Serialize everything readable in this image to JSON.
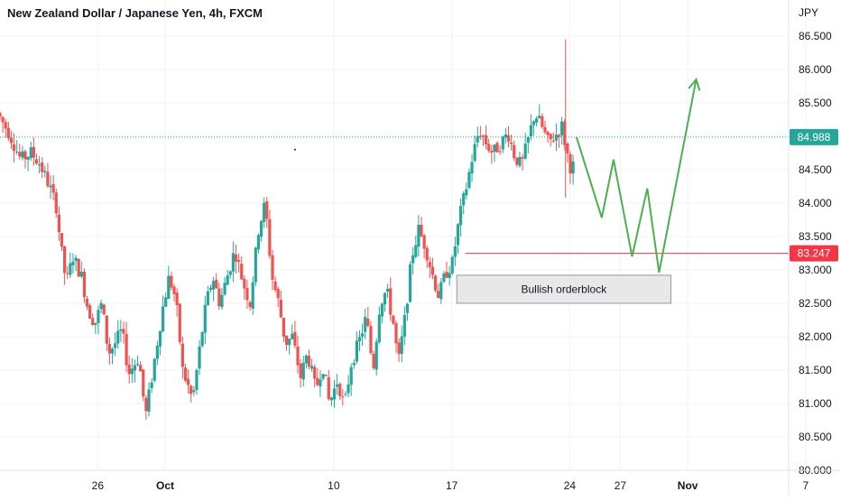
{
  "chart_data": {
    "type": "candlestick",
    "title": "New Zealand Dollar / Japanese Yen, 4h, FXCM",
    "currency": "JPY",
    "ylim": [
      80.0,
      86.85
    ],
    "y_ticks": [
      "86.500",
      "86.000",
      "85.500",
      "85.000",
      "84.500",
      "84.000",
      "83.500",
      "83.000",
      "82.500",
      "82.000",
      "81.500",
      "81.000",
      "80.500",
      "80.000"
    ],
    "x_ticks": [
      {
        "label": "26",
        "day": 26
      },
      {
        "label": "Oct",
        "day": 30
      },
      {
        "label": "10",
        "day": 40
      },
      {
        "label": "17",
        "day": 47
      },
      {
        "label": "24",
        "day": 54
      },
      {
        "label": "27",
        "day": 57
      },
      {
        "label": "Nov",
        "day": 61
      },
      {
        "label": "7",
        "day": 68
      }
    ],
    "x_range_days": [
      20.2,
      70.2
    ],
    "grid": true,
    "up_color": "#26a69a",
    "down_color": "#ef5350",
    "anchors": [
      [
        20.2,
        85.35
      ],
      [
        20.9,
        85.05
      ],
      [
        21.6,
        84.65
      ],
      [
        22.2,
        84.75
      ],
      [
        22.7,
        84.6
      ],
      [
        23.3,
        84.25
      ],
      [
        23.7,
        83.95
      ],
      [
        24.0,
        83.3
      ],
      [
        24.3,
        82.8
      ],
      [
        24.7,
        83.2
      ],
      [
        25.2,
        82.9
      ],
      [
        25.6,
        82.4
      ],
      [
        26.0,
        82.2
      ],
      [
        26.4,
        82.5
      ],
      [
        26.8,
        81.75
      ],
      [
        27.2,
        81.9
      ],
      [
        27.6,
        82.1
      ],
      [
        28.0,
        81.45
      ],
      [
        28.6,
        81.7
      ],
      [
        29.0,
        80.8
      ],
      [
        29.5,
        81.6
      ],
      [
        30.0,
        82.4
      ],
      [
        30.4,
        82.9
      ],
      [
        30.8,
        82.55
      ],
      [
        31.2,
        81.5
      ],
      [
        31.8,
        81.05
      ],
      [
        32.2,
        81.8
      ],
      [
        32.6,
        82.5
      ],
      [
        33.0,
        82.9
      ],
      [
        33.4,
        82.5
      ],
      [
        33.9,
        82.95
      ],
      [
        34.3,
        83.3
      ],
      [
        34.8,
        82.8
      ],
      [
        35.2,
        82.5
      ],
      [
        35.7,
        83.6
      ],
      [
        36.1,
        84.0
      ],
      [
        36.5,
        82.9
      ],
      [
        36.9,
        82.5
      ],
      [
        37.3,
        81.9
      ],
      [
        37.7,
        82.0
      ],
      [
        38.2,
        81.4
      ],
      [
        38.6,
        81.75
      ],
      [
        39.1,
        81.2
      ],
      [
        39.5,
        81.6
      ],
      [
        39.9,
        81.0
      ],
      [
        40.4,
        81.35
      ],
      [
        40.8,
        80.95
      ],
      [
        41.2,
        81.6
      ],
      [
        41.7,
        81.95
      ],
      [
        42.1,
        82.3
      ],
      [
        42.5,
        81.5
      ],
      [
        42.9,
        82.5
      ],
      [
        43.3,
        82.7
      ],
      [
        43.7,
        82.2
      ],
      [
        44.0,
        81.6
      ],
      [
        44.4,
        82.3
      ],
      [
        44.8,
        83.2
      ],
      [
        45.2,
        83.6
      ],
      [
        45.6,
        83.35
      ],
      [
        46.0,
        82.95
      ],
      [
        46.4,
        82.6
      ],
      [
        46.8,
        82.95
      ],
      [
        47.2,
        83.1
      ],
      [
        47.6,
        83.75
      ],
      [
        48.0,
        84.2
      ],
      [
        48.4,
        84.7
      ],
      [
        48.8,
        85.1
      ],
      [
        49.2,
        84.9
      ],
      [
        49.6,
        84.75
      ],
      [
        50.1,
        84.9
      ],
      [
        50.5,
        85.05
      ],
      [
        50.9,
        84.7
      ],
      [
        51.3,
        84.55
      ],
      [
        51.7,
        84.95
      ],
      [
        52.1,
        85.35
      ],
      [
        52.5,
        85.15
      ],
      [
        52.9,
        84.9
      ],
      [
        53.3,
        85.0
      ],
      [
        53.7,
        85.15
      ],
      [
        54.0,
        84.75
      ],
      [
        54.2,
        84.55
      ]
    ],
    "forecast_path": [
      [
        54.4,
        84.988
      ],
      [
        55.9,
        83.78
      ],
      [
        56.6,
        84.65
      ],
      [
        57.7,
        83.2
      ],
      [
        58.6,
        84.22
      ],
      [
        59.3,
        82.96
      ],
      [
        61.5,
        85.85
      ]
    ],
    "forecast_color": "#4caf50",
    "current_price": {
      "label": "84.988",
      "value": 84.988,
      "color": "#26a69a"
    },
    "level_line": {
      "label": "83.247",
      "value": 83.247,
      "color": "#f23645",
      "from_day": 47.8
    },
    "orderblock": {
      "label": "Bullish orderblock",
      "from_day": 47.3,
      "to_day": 60.0,
      "top": 82.92,
      "bottom": 82.5
    },
    "marker_point": [
      37.7,
      84.8
    ]
  }
}
